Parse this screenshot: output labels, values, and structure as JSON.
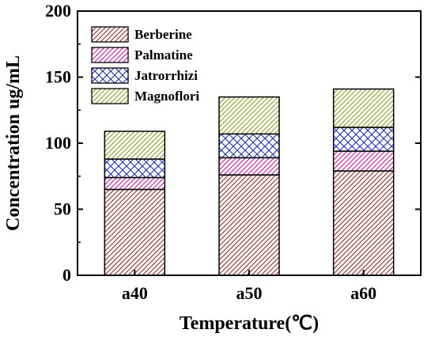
{
  "chart_data": {
    "type": "bar",
    "stacked": true,
    "title": "",
    "xlabel": "Temperature(℃)",
    "ylabel": "Concentration ug/mL",
    "categories": [
      "a40",
      "a50",
      "a60"
    ],
    "ylim": [
      0,
      200
    ],
    "yticks": [
      0,
      50,
      100,
      150,
      200
    ],
    "grid": false,
    "legend_position": "top-left",
    "series": [
      {
        "name": "Berberine",
        "values": [
          65,
          76,
          79
        ],
        "color": "#8b2a2a",
        "pattern": "diagonal-hatch"
      },
      {
        "name": "Palmatine",
        "values": [
          9,
          13,
          15
        ],
        "color": "#c0189a",
        "pattern": "diagonal-hatch"
      },
      {
        "name": "Jatrorrhizi",
        "values": [
          14,
          18,
          18
        ],
        "color": "#1f2fa8",
        "pattern": "crosshatch"
      },
      {
        "name": "Magnoflori",
        "values": [
          21,
          28,
          29
        ],
        "color": "#8a9a22",
        "pattern": "diagonal-hatch"
      }
    ]
  }
}
